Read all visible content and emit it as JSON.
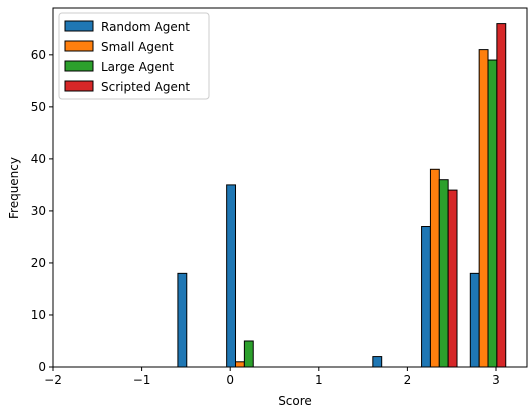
{
  "chart_data": {
    "type": "bar",
    "title": "",
    "xlabel": "Score",
    "ylabel": "Frequency",
    "xlim": [
      -2,
      3.35
    ],
    "ylim": [
      0,
      69
    ],
    "xticks": [
      "−2",
      "−1",
      "0",
      "1",
      "2",
      "3"
    ],
    "xtick_values": [
      -2,
      -1,
      0,
      1,
      2,
      3
    ],
    "yticks": [
      "0",
      "10",
      "20",
      "30",
      "40",
      "50",
      "60"
    ],
    "ytick_values": [
      0,
      10,
      20,
      30,
      40,
      50,
      60
    ],
    "grid": false,
    "legend_position": "top-left",
    "bar_width": 0.1,
    "bin_centers": [
      -0.39,
      0.16,
      0.71,
      1.26,
      1.81,
      2.36,
      2.91
    ],
    "series": [
      {
        "name": "Random Agent",
        "color": "#1f77b4",
        "values": [
          18,
          35,
          0,
          0,
          2,
          27,
          18
        ]
      },
      {
        "name": "Small Agent",
        "color": "#ff7f0e",
        "values": [
          0,
          1,
          0,
          0,
          0,
          38,
          61
        ]
      },
      {
        "name": "Large Agent",
        "color": "#2ca02c",
        "values": [
          0,
          5,
          0,
          0,
          0,
          36,
          59
        ]
      },
      {
        "name": "Scripted Agent",
        "color": "#d62728",
        "values": [
          0,
          0,
          0,
          0,
          0,
          34,
          66
        ]
      }
    ]
  }
}
